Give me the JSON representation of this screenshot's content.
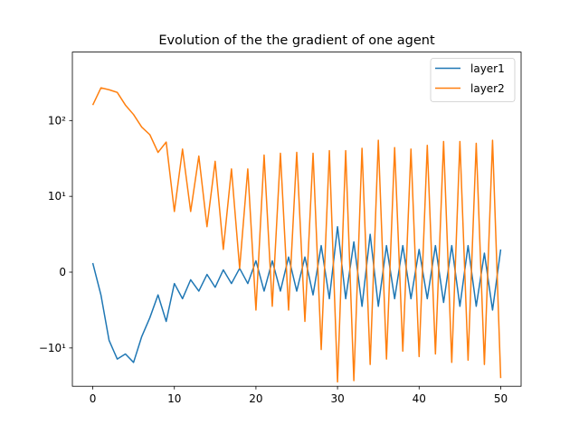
{
  "chart_data": {
    "type": "line",
    "title": "Evolution of the the gradient of one agent",
    "xlabel": "",
    "ylabel": "",
    "xlim": [
      -2.5,
      52.5
    ],
    "ylim": [
      -32,
      800
    ],
    "yscale": "symlog",
    "x_ticks": [
      0,
      10,
      20,
      30,
      40,
      50
    ],
    "x_tick_labels": [
      "0",
      "10",
      "20",
      "30",
      "40",
      "50"
    ],
    "y_ticks": [
      -10,
      0,
      10,
      100
    ],
    "y_tick_labels": [
      "−10¹",
      "0",
      "10¹",
      "10²"
    ],
    "legend": {
      "position": "top-right",
      "entries": [
        "layer1",
        "layer2"
      ]
    },
    "grid": false,
    "colors": {
      "layer1": "#1f77b4",
      "layer2": "#ff7f0e"
    },
    "x": [
      0,
      1,
      2,
      3,
      4,
      5,
      6,
      7,
      8,
      9,
      10,
      11,
      12,
      13,
      14,
      15,
      16,
      17,
      18,
      19,
      20,
      21,
      22,
      23,
      24,
      25,
      26,
      27,
      28,
      29,
      30,
      31,
      32,
      33,
      34,
      35,
      36,
      37,
      38,
      39,
      40,
      41,
      42,
      43,
      44,
      45,
      46,
      47,
      48,
      49,
      50
    ],
    "series": [
      {
        "name": "layer1",
        "values": [
          1.2,
          -3.0,
          -9.0,
          -14.0,
          -12.0,
          -15.5,
          -8.5,
          -6.0,
          -3.0,
          -6.5,
          -1.5,
          -3.5,
          -1.0,
          -2.5,
          -0.3,
          -2.0,
          0.3,
          -1.5,
          0.5,
          -1.5,
          1.5,
          -2.5,
          1.5,
          -2.5,
          2.0,
          -2.5,
          2.0,
          -3.0,
          3.5,
          -3.5,
          6.0,
          -3.5,
          4.0,
          -4.5,
          5.0,
          -4.5,
          3.5,
          -3.5,
          3.5,
          -3.5,
          3.0,
          -3.5,
          3.5,
          -4.0,
          3.5,
          -4.5,
          3.5,
          -4.5,
          2.5,
          -5.0,
          3.0
        ]
      },
      {
        "name": "layer2",
        "values": [
          160,
          270,
          255,
          235,
          160,
          120,
          82,
          65,
          38,
          52,
          8.0,
          42,
          8.0,
          34,
          6.0,
          29,
          3.0,
          23,
          0.5,
          23,
          -5.0,
          35,
          -4.5,
          37,
          -5.0,
          38,
          -6.5,
          37,
          -10.5,
          40,
          -28.0,
          40,
          -27.0,
          43,
          -16.5,
          55,
          -14.0,
          44,
          -11.0,
          42,
          -13.0,
          47,
          -12.0,
          53,
          -15.5,
          53,
          -14.5,
          50,
          -16.5,
          55,
          -25.0
        ]
      }
    ]
  }
}
